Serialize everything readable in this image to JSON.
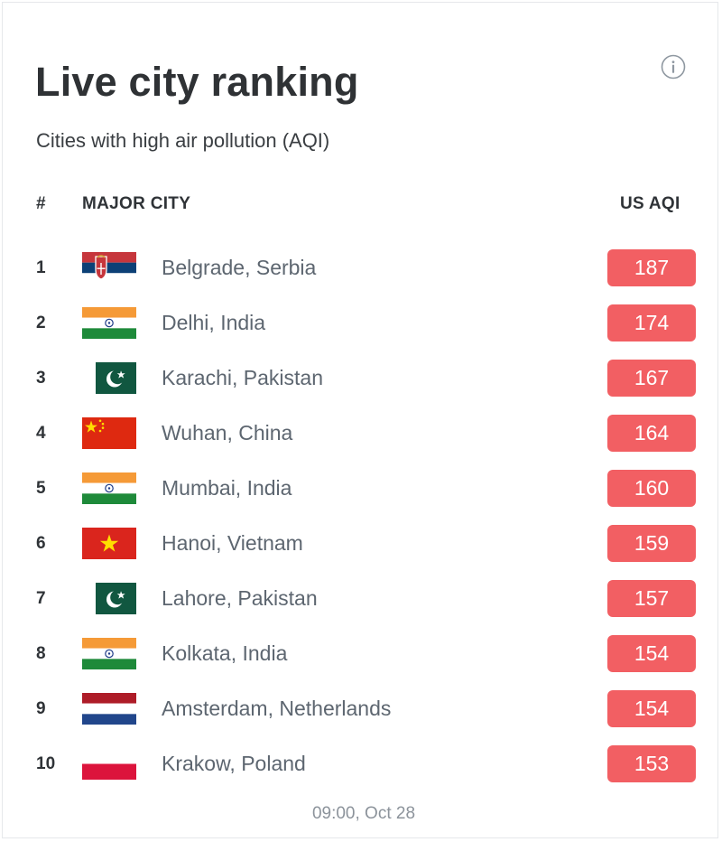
{
  "header": {
    "title": "Live city ranking",
    "subtitle": "Cities with high air pollution (AQI)",
    "info_icon": "info-circle-icon"
  },
  "table": {
    "columns": {
      "rank": "#",
      "city": "MAJOR CITY",
      "aqi": "US AQI"
    },
    "rows": [
      {
        "rank": "1",
        "city": "Belgrade, Serbia",
        "aqi": "187",
        "flag": "serbia-flag-icon"
      },
      {
        "rank": "2",
        "city": "Delhi, India",
        "aqi": "174",
        "flag": "india-flag-icon"
      },
      {
        "rank": "3",
        "city": "Karachi, Pakistan",
        "aqi": "167",
        "flag": "pakistan-flag-icon"
      },
      {
        "rank": "4",
        "city": "Wuhan, China",
        "aqi": "164",
        "flag": "china-flag-icon"
      },
      {
        "rank": "5",
        "city": "Mumbai, India",
        "aqi": "160",
        "flag": "india-flag-icon"
      },
      {
        "rank": "6",
        "city": "Hanoi, Vietnam",
        "aqi": "159",
        "flag": "vietnam-flag-icon"
      },
      {
        "rank": "7",
        "city": "Lahore, Pakistan",
        "aqi": "157",
        "flag": "pakistan-flag-icon"
      },
      {
        "rank": "8",
        "city": "Kolkata, India",
        "aqi": "154",
        "flag": "india-flag-icon"
      },
      {
        "rank": "9",
        "city": "Amsterdam, Netherlands",
        "aqi": "154",
        "flag": "netherlands-flag-icon"
      },
      {
        "rank": "10",
        "city": "Krakow, Poland",
        "aqi": "153",
        "flag": "poland-flag-icon"
      }
    ]
  },
  "footer": {
    "updated": "09:00, Oct 28"
  },
  "colors": {
    "aqi_badge": "#f25f63",
    "city_text": "#5d6670"
  }
}
